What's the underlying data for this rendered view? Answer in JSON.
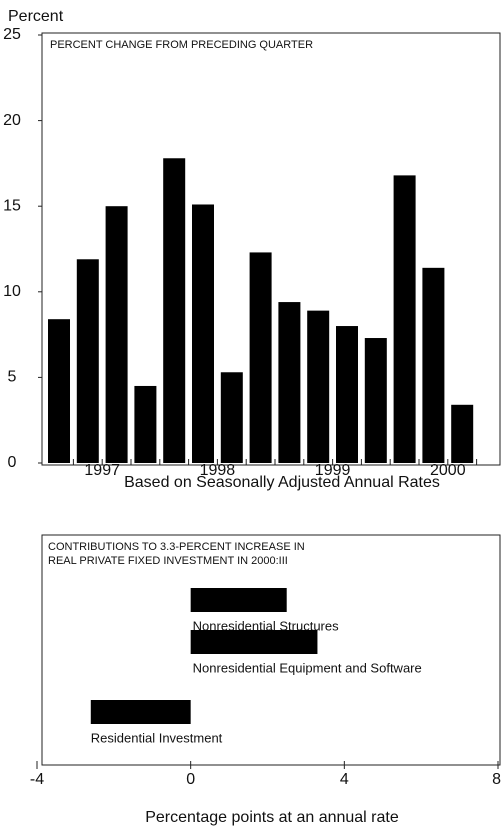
{
  "chart_data": [
    {
      "type": "bar",
      "y_label": "Percent",
      "title": "PERCENT CHANGE FROM PRECEDING QUARTER",
      "x_label": "Based on Seasonally Adjusted Annual Rates",
      "categories": [
        "1997",
        null,
        null,
        null,
        "1998",
        null,
        null,
        null,
        "1999",
        null,
        null,
        null,
        "2000",
        null,
        null
      ],
      "values": [
        8.4,
        11.9,
        15.0,
        4.5,
        17.8,
        15.1,
        5.3,
        12.3,
        9.4,
        8.9,
        8.0,
        7.3,
        16.8,
        11.4,
        3.4
      ],
      "color": "#000000",
      "ylim": [
        0,
        25
      ],
      "yticks": [
        0,
        5,
        10,
        15,
        20,
        25
      ]
    },
    {
      "type": "hbar",
      "title": [
        "CONTRIBUTIONS TO 3.3-PERCENT INCREASE IN",
        "REAL PRIVATE FIXED INVESTMENT IN 2000:III"
      ],
      "x_label": "Percentage points at an annual rate",
      "categories": [
        "Nonresidential Structures",
        "Nonresidential Equipment and Software",
        "Residential Investment"
      ],
      "values": [
        2.5,
        3.3,
        -2.6
      ],
      "color": "#000000",
      "xlim": [
        -4,
        8
      ],
      "xticks": [
        -4,
        0,
        4,
        8
      ]
    }
  ]
}
